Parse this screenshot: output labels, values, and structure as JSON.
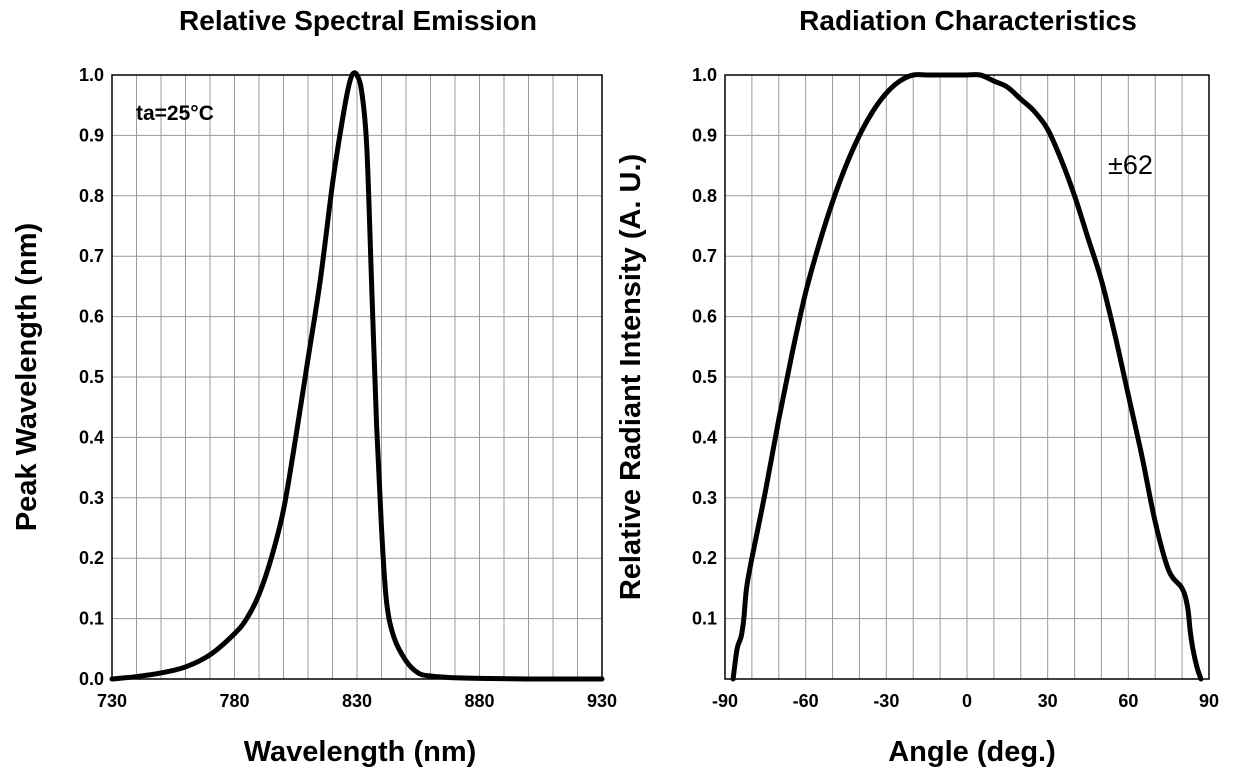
{
  "chart_data": [
    {
      "type": "line",
      "title": "Relative Spectral Emission",
      "xlabel": "Wavelength (nm)",
      "ylabel": "Peak Wavelength (nm)",
      "xlim": [
        730,
        930
      ],
      "ylim": [
        0,
        1.0
      ],
      "x_ticks": [
        "730",
        "780",
        "830",
        "880",
        "930"
      ],
      "y_ticks": [
        "0.0",
        "0.1",
        "0.2",
        "0.3",
        "0.4",
        "0.5",
        "0.6",
        "0.7",
        "0.8",
        "0.9",
        "1.0"
      ],
      "grid": true,
      "annotation": "ta=25°C",
      "series": [
        {
          "x": [
            730,
            740,
            750,
            760,
            770,
            780,
            785,
            790,
            795,
            800,
            805,
            810,
            815,
            820,
            823,
            826,
            828,
            830,
            832,
            834,
            836,
            838,
            840,
            842,
            845,
            850,
            855,
            860,
            870,
            880,
            900,
            930
          ],
          "y": [
            0.0,
            0.004,
            0.01,
            0.02,
            0.04,
            0.075,
            0.1,
            0.14,
            0.2,
            0.28,
            0.4,
            0.53,
            0.66,
            0.82,
            0.9,
            0.97,
            1.0,
            1.0,
            0.97,
            0.88,
            0.65,
            0.42,
            0.25,
            0.13,
            0.07,
            0.03,
            0.01,
            0.005,
            0.002,
            0.001,
            0.0,
            0.0
          ]
        }
      ]
    },
    {
      "type": "line",
      "title": "Radiation Characteristics",
      "xlabel": "Angle (deg.)",
      "ylabel": "Relative Radiant Intensity (A. U.)",
      "xlim": [
        -90,
        90
      ],
      "ylim": [
        0,
        1.0
      ],
      "x_ticks": [
        "-90",
        "-60",
        "-30",
        "0",
        "30",
        "60",
        "90"
      ],
      "y_ticks": [
        "0.1",
        "0.2",
        "0.3",
        "0.4",
        "0.5",
        "0.6",
        "0.7",
        "0.8",
        "0.9",
        "1.0"
      ],
      "grid": true,
      "annotation": "±62",
      "series": [
        {
          "x": [
            -87,
            -85.5,
            -84,
            -83,
            -82,
            -80,
            -75,
            -70,
            -65,
            -60,
            -55,
            -50,
            -45,
            -40,
            -35,
            -30,
            -25,
            -20,
            -15,
            -10,
            -5,
            0,
            5,
            10,
            15,
            20,
            25,
            30,
            35,
            40,
            45,
            50,
            55,
            60,
            65,
            70,
            75,
            80,
            82,
            83,
            84,
            85.5,
            87
          ],
          "y": [
            0.0,
            0.05,
            0.07,
            0.1,
            0.15,
            0.2,
            0.31,
            0.43,
            0.54,
            0.64,
            0.72,
            0.79,
            0.85,
            0.9,
            0.94,
            0.97,
            0.99,
            1.0,
            1.0,
            1.0,
            1.0,
            1.0,
            1.0,
            0.99,
            0.98,
            0.96,
            0.94,
            0.91,
            0.86,
            0.8,
            0.73,
            0.66,
            0.57,
            0.47,
            0.37,
            0.26,
            0.18,
            0.15,
            0.12,
            0.08,
            0.05,
            0.02,
            0.0
          ]
        }
      ]
    }
  ]
}
